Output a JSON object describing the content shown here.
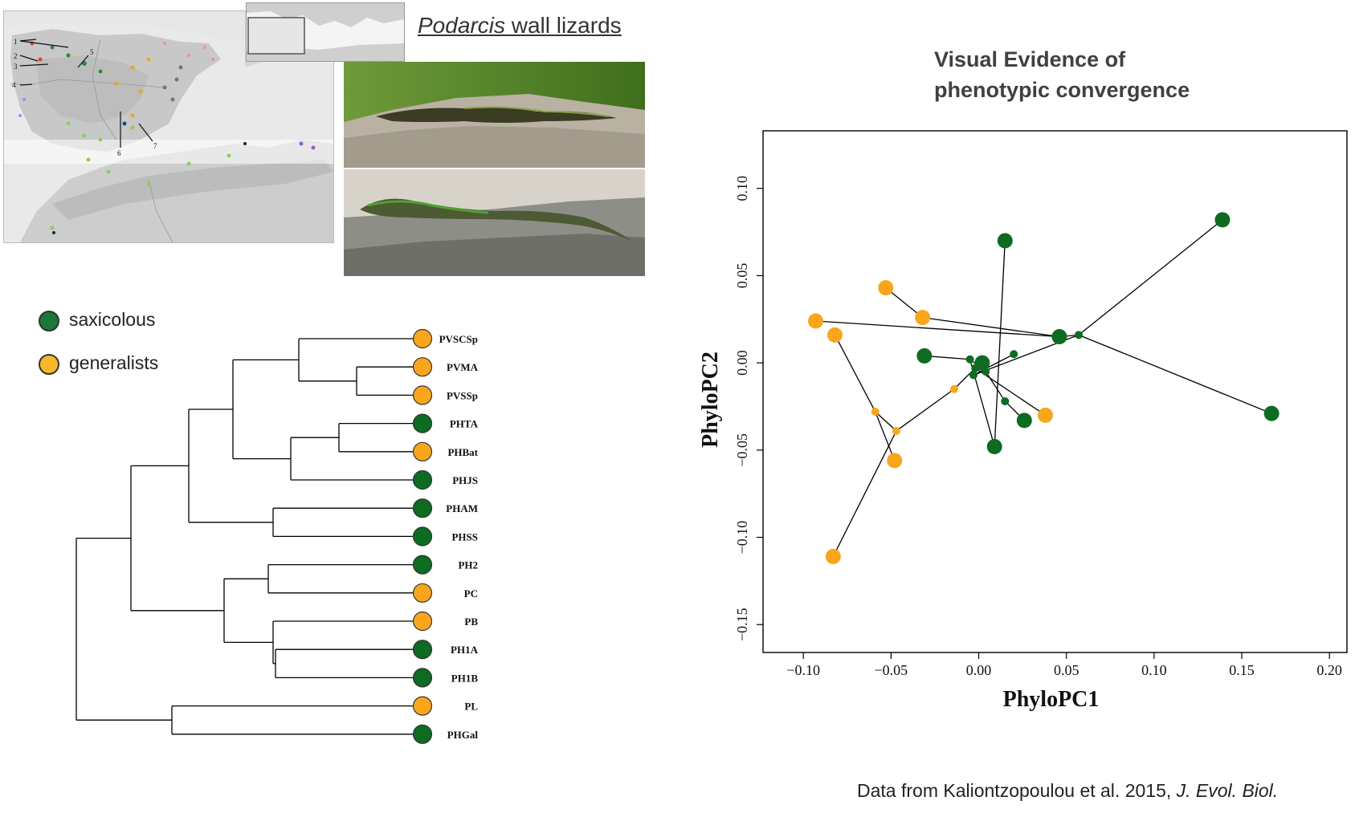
{
  "header": {
    "genus": "Podarcis",
    "title_rest": " wall lizards",
    "chart_title_line1": "Visual Evidence of",
    "chart_title_line2": "phenotypic convergence"
  },
  "legend": [
    {
      "label": "saxicolous",
      "color": "#1a7a35"
    },
    {
      "label": "generalists",
      "color": "#f7b92a"
    }
  ],
  "source": {
    "text": "Data from Kaliontzopoulou et al. 2015, ",
    "journal": "J. Evol. Biol."
  },
  "map": {
    "labels": [
      "1",
      "2",
      "3",
      "4",
      "5",
      "6",
      "7"
    ]
  },
  "colors": {
    "saxicolous": "#0d6b22",
    "generalist": "#f9a61c"
  },
  "tree": {
    "taxa": [
      {
        "name": "PVSCSp",
        "group": "generalist"
      },
      {
        "name": "PVMA",
        "group": "generalist"
      },
      {
        "name": "PVSSp",
        "group": "generalist"
      },
      {
        "name": "PHTA",
        "group": "saxicolous"
      },
      {
        "name": "PHBat",
        "group": "generalist"
      },
      {
        "name": "PHJS",
        "group": "saxicolous"
      },
      {
        "name": "PHAM",
        "group": "saxicolous"
      },
      {
        "name": "PHSS",
        "group": "saxicolous"
      },
      {
        "name": "PH2",
        "group": "saxicolous"
      },
      {
        "name": "PC",
        "group": "generalist"
      },
      {
        "name": "PB",
        "group": "generalist"
      },
      {
        "name": "PH1A",
        "group": "saxicolous"
      },
      {
        "name": "PH1B",
        "group": "saxicolous"
      },
      {
        "name": "PL",
        "group": "generalist"
      },
      {
        "name": "PHGal",
        "group": "saxicolous"
      }
    ]
  },
  "chart_data": {
    "type": "scatter",
    "title": "",
    "xlabel": "PhyloPC1",
    "ylabel": "PhyloPC2",
    "xlim": [
      -0.123,
      0.21
    ],
    "ylim": [
      -0.166,
      0.133
    ],
    "xticks": [
      -0.1,
      -0.05,
      0.0,
      0.05,
      0.1,
      0.15,
      0.2
    ],
    "xtick_labels": [
      "−0.10",
      "−0.05",
      "0.00",
      "0.05",
      "0.10",
      "0.15",
      "0.20"
    ],
    "yticks": [
      -0.15,
      -0.1,
      -0.05,
      0.0,
      0.05,
      0.1
    ],
    "ytick_labels": [
      "−0.15",
      "−0.10",
      "−0.05",
      "0.00",
      "0.05",
      "0.10"
    ],
    "tips": [
      {
        "x": -0.093,
        "y": 0.024,
        "group": "generalist"
      },
      {
        "x": -0.082,
        "y": 0.016,
        "group": "generalist"
      },
      {
        "x": -0.053,
        "y": 0.043,
        "group": "generalist"
      },
      {
        "x": -0.032,
        "y": 0.026,
        "group": "generalist"
      },
      {
        "x": -0.048,
        "y": -0.056,
        "group": "generalist"
      },
      {
        "x": -0.083,
        "y": -0.111,
        "group": "generalist"
      },
      {
        "x": 0.038,
        "y": -0.03,
        "group": "generalist"
      },
      {
        "x": 0.015,
        "y": 0.07,
        "group": "saxicolous"
      },
      {
        "x": 0.139,
        "y": 0.082,
        "group": "saxicolous"
      },
      {
        "x": 0.046,
        "y": 0.015,
        "group": "saxicolous"
      },
      {
        "x": -0.031,
        "y": 0.004,
        "group": "saxicolous"
      },
      {
        "x": 0.002,
        "y": 0.0,
        "group": "saxicolous"
      },
      {
        "x": 0.167,
        "y": -0.029,
        "group": "saxicolous"
      },
      {
        "x": 0.026,
        "y": -0.033,
        "group": "saxicolous"
      },
      {
        "x": 0.009,
        "y": -0.048,
        "group": "saxicolous"
      }
    ],
    "nodes": [
      {
        "x": -0.014,
        "y": -0.015,
        "group": "generalist"
      },
      {
        "x": -0.059,
        "y": -0.028,
        "group": "generalist"
      },
      {
        "x": -0.047,
        "y": -0.039,
        "group": "generalist"
      },
      {
        "x": 0.02,
        "y": 0.005,
        "group": "saxicolous"
      },
      {
        "x": 0.057,
        "y": 0.016,
        "group": "saxicolous"
      },
      {
        "x": 0.015,
        "y": -0.022,
        "group": "saxicolous"
      },
      {
        "x": -0.005,
        "y": 0.002,
        "group": "saxicolous"
      },
      {
        "x": -0.002,
        "y": -0.003,
        "group": "saxicolous"
      },
      {
        "x": 0.004,
        "y": -0.005,
        "group": "saxicolous"
      },
      {
        "x": -0.003,
        "y": -0.007,
        "group": "saxicolous"
      }
    ],
    "edges": [
      [
        -0.093,
        0.024,
        0.046,
        0.015
      ],
      [
        -0.082,
        0.016,
        -0.059,
        -0.028
      ],
      [
        -0.059,
        -0.028,
        -0.048,
        -0.056
      ],
      [
        -0.059,
        -0.028,
        -0.047,
        -0.039
      ],
      [
        -0.047,
        -0.039,
        -0.014,
        -0.015
      ],
      [
        -0.014,
        -0.015,
        -0.002,
        -0.003
      ],
      [
        -0.053,
        0.043,
        -0.032,
        0.026
      ],
      [
        -0.032,
        0.026,
        0.046,
        0.015
      ],
      [
        -0.083,
        -0.111,
        -0.047,
        -0.039
      ],
      [
        0.038,
        -0.03,
        -0.002,
        -0.003
      ],
      [
        0.015,
        0.07,
        0.009,
        -0.048
      ],
      [
        0.009,
        -0.048,
        -0.005,
        0.002
      ],
      [
        0.026,
        -0.033,
        0.015,
        -0.022
      ],
      [
        0.015,
        -0.022,
        0.004,
        -0.005
      ],
      [
        -0.031,
        0.004,
        -0.005,
        0.002
      ],
      [
        -0.005,
        0.002,
        0.004,
        -0.005
      ],
      [
        0.139,
        0.082,
        0.057,
        0.016
      ],
      [
        0.057,
        0.016,
        0.167,
        -0.029
      ],
      [
        0.057,
        0.016,
        -0.003,
        -0.007
      ],
      [
        0.046,
        0.015,
        0.057,
        0.016
      ],
      [
        0.02,
        0.005,
        -0.003,
        -0.007
      ],
      [
        -0.003,
        -0.007,
        0.002,
        0.0
      ],
      [
        0.002,
        0.0,
        -0.002,
        -0.003
      ]
    ]
  }
}
